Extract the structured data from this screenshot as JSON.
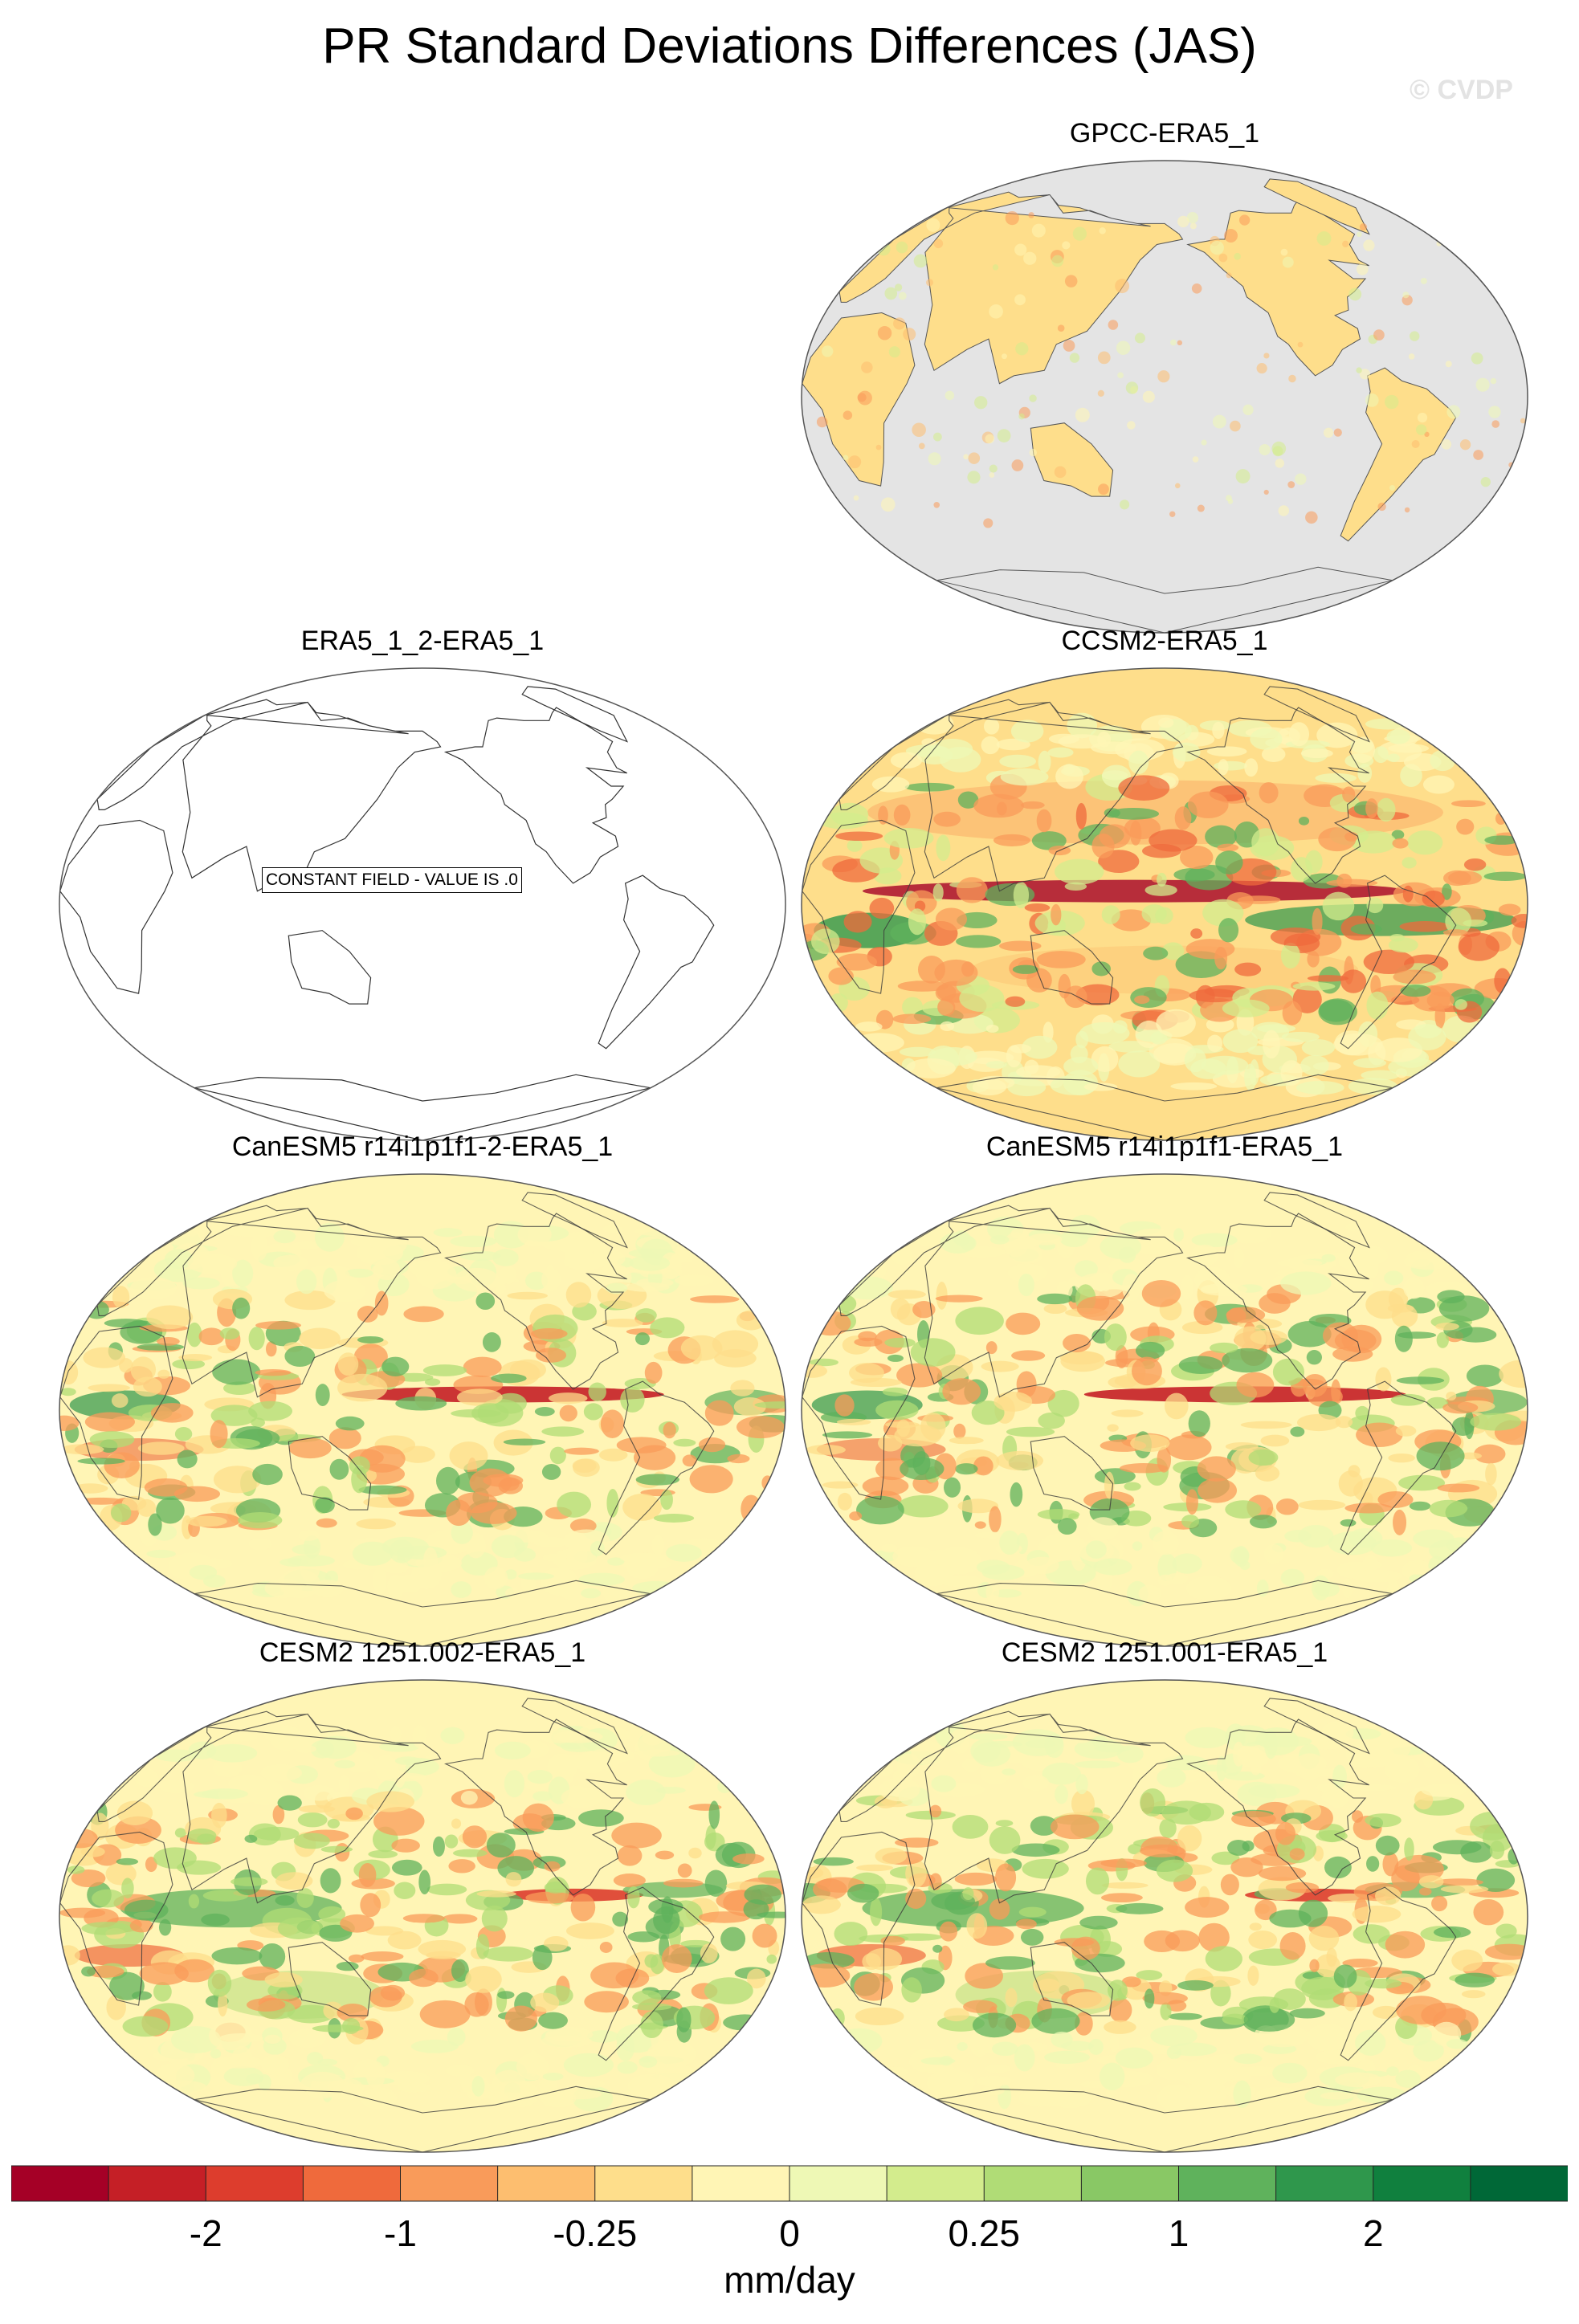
{
  "title": "PR Standard Deviations Differences (JAS)",
  "watermark": "© CVDP",
  "panels": [
    {
      "id": "gpcc",
      "label": "GPCC-ERA5_1",
      "pattern": "land-only"
    },
    {
      "id": "era5-2",
      "label": "ERA5_1_2-ERA5_1",
      "pattern": "constant",
      "note": "CONSTANT FIELD - VALUE IS .0"
    },
    {
      "id": "ccsm2",
      "label": "CCSM2-ERA5_1",
      "pattern": "ccsm2"
    },
    {
      "id": "canesm5-2",
      "label": "CanESM5 r14i1p1f1-2-ERA5_1",
      "pattern": "canesm5"
    },
    {
      "id": "canesm5",
      "label": "CanESM5 r14i1p1f1-ERA5_1",
      "pattern": "canesm5"
    },
    {
      "id": "cesm2-002",
      "label": "CESM2 1251.002-ERA5_1",
      "pattern": "cesm2"
    },
    {
      "id": "cesm2-001",
      "label": "CESM2 1251.001-ERA5_1",
      "pattern": "cesm2"
    }
  ],
  "colorbar": {
    "units": "mm/day",
    "colors": [
      "#a50026",
      "#c51f26",
      "#dd3d2d",
      "#ef6a3c",
      "#f99b5a",
      "#fdbe6f",
      "#fede8b",
      "#fff5b5",
      "#eef8b5",
      "#d3ec8d",
      "#b0dc76",
      "#89c865",
      "#5fb25c",
      "#2f974c",
      "#10803e",
      "#006837"
    ],
    "tick_labels": [
      "-2",
      "-1",
      "-0.25",
      "0",
      "0.25",
      "1",
      "2"
    ]
  }
}
